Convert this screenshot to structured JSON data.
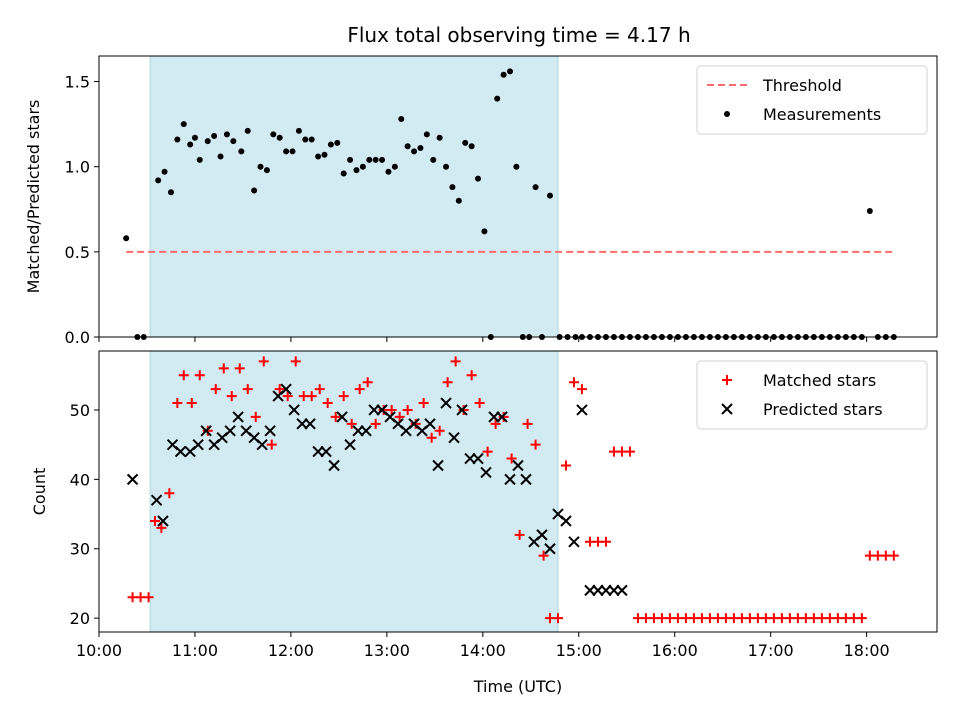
{
  "title": "Flux total observing time = 4.17 h",
  "colors": {
    "band": "#add8e6",
    "threshold": "#ff6b6b",
    "measurement": "#000000",
    "matched": "#ff0000",
    "predicted": "#000000"
  },
  "chart_data": [
    {
      "type": "scatter",
      "ylabel": "Matched/Predicted stars",
      "xlim": [
        "10:00",
        "18:44"
      ],
      "ylim": [
        0,
        1.65
      ],
      "yticks": [
        "0.0",
        "0.5",
        "1.0",
        "1.5"
      ],
      "highlight_span": [
        "10:32",
        "14:47"
      ],
      "legend": "top-right",
      "series": [
        {
          "name": "Threshold",
          "style": "dashed-line",
          "x": [
            "10:17",
            "18:17"
          ],
          "y": [
            0.5,
            0.5
          ]
        },
        {
          "name": "Measurements",
          "style": "dot",
          "x": [
            "10:17",
            "10:24",
            "10:28",
            "10:37",
            "10:41",
            "10:45",
            "10:49",
            "10:53",
            "10:57",
            "11:00",
            "11:03",
            "11:08",
            "11:12",
            "11:16",
            "11:20",
            "11:24",
            "11:29",
            "11:33",
            "11:37",
            "11:41",
            "11:45",
            "11:49",
            "11:53",
            "11:57",
            "12:01",
            "12:05",
            "12:09",
            "12:13",
            "12:17",
            "12:21",
            "12:25",
            "12:29",
            "12:33",
            "12:37",
            "12:41",
            "12:45",
            "12:49",
            "12:53",
            "12:57",
            "13:01",
            "13:05",
            "13:09",
            "13:13",
            "13:17",
            "13:21",
            "13:25",
            "13:29",
            "13:33",
            "13:37",
            "13:41",
            "13:45",
            "13:49",
            "13:53",
            "13:57",
            "14:01",
            "14:05",
            "14:09",
            "14:13",
            "14:17",
            "14:21",
            "14:25",
            "14:29",
            "14:33",
            "14:37",
            "14:42",
            "14:48",
            "14:53",
            "14:58",
            "15:02",
            "15:07",
            "15:12",
            "15:17",
            "15:22",
            "15:27",
            "15:32",
            "15:37",
            "15:42",
            "15:47",
            "15:52",
            "15:57",
            "16:02",
            "16:07",
            "16:12",
            "16:17",
            "16:22",
            "16:27",
            "16:32",
            "16:37",
            "16:42",
            "16:47",
            "16:52",
            "16:57",
            "17:02",
            "17:07",
            "17:12",
            "17:17",
            "17:22",
            "17:27",
            "17:32",
            "17:37",
            "17:42",
            "17:47",
            "17:52",
            "17:57",
            "18:02",
            "18:07",
            "18:12",
            "18:17"
          ],
          "y": [
            0.58,
            0.0,
            0.0,
            0.92,
            0.97,
            0.85,
            1.16,
            1.25,
            1.13,
            1.17,
            1.04,
            1.15,
            1.18,
            1.06,
            1.19,
            1.15,
            1.09,
            1.21,
            0.86,
            1.0,
            0.98,
            1.19,
            1.17,
            1.09,
            1.09,
            1.21,
            1.16,
            1.16,
            1.06,
            1.07,
            1.13,
            1.14,
            0.96,
            1.04,
            0.98,
            1.0,
            1.04,
            1.04,
            1.04,
            0.97,
            1.0,
            1.28,
            1.12,
            1.09,
            1.11,
            1.19,
            1.04,
            1.17,
            1.0,
            0.88,
            0.8,
            1.14,
            1.12,
            0.93,
            0.62,
            0.0,
            1.4,
            1.54,
            1.56,
            1.0,
            0.0,
            0.0,
            0.88,
            0.0,
            0.83,
            0.0,
            0.0,
            0.0,
            0.0,
            0.0,
            0.0,
            0.0,
            0.0,
            0.0,
            0.0,
            0.0,
            0.0,
            0.0,
            0.0,
            0.0,
            0.0,
            0.0,
            0.0,
            0.0,
            0.0,
            0.0,
            0.0,
            0.0,
            0.0,
            0.0,
            0.0,
            0.0,
            0.0,
            0.0,
            0.0,
            0.0,
            0.0,
            0.0,
            0.0,
            0.0,
            0.0,
            0.0,
            0.0,
            0.0,
            0.74,
            0.0,
            0.0,
            0.0
          ]
        }
      ]
    },
    {
      "type": "scatter",
      "xlabel": "Time (UTC)",
      "ylabel": "Count",
      "xlim": [
        "10:00",
        "18:44"
      ],
      "ylim": [
        18,
        58.5
      ],
      "yticks": [
        "20",
        "30",
        "40",
        "50"
      ],
      "xticks": [
        "10:00",
        "11:00",
        "12:00",
        "13:00",
        "14:00",
        "15:00",
        "16:00",
        "17:00",
        "18:00"
      ],
      "highlight_span": [
        "10:32",
        "14:47"
      ],
      "legend": "top-right",
      "series": [
        {
          "name": "Matched stars",
          "style": "plus",
          "x": [
            "10:21",
            "10:26",
            "10:31",
            "10:35",
            "10:39",
            "10:44",
            "10:49",
            "10:53",
            "10:58",
            "11:03",
            "11:08",
            "11:13",
            "11:18",
            "11:23",
            "11:28",
            "11:33",
            "11:38",
            "11:43",
            "11:48",
            "11:53",
            "11:58",
            "12:03",
            "12:08",
            "12:13",
            "12:18",
            "12:23",
            "12:28",
            "12:33",
            "12:38",
            "12:43",
            "12:48",
            "12:53",
            "12:58",
            "13:03",
            "13:08",
            "13:13",
            "13:18",
            "13:23",
            "13:28",
            "13:33",
            "13:38",
            "13:43",
            "13:48",
            "13:53",
            "13:58",
            "14:03",
            "14:08",
            "14:13",
            "14:18",
            "14:23",
            "14:28",
            "14:33",
            "14:38",
            "14:42",
            "14:47",
            "14:52",
            "14:57",
            "15:02",
            "15:07",
            "15:12",
            "15:17",
            "15:22",
            "15:27",
            "15:32",
            "15:37",
            "15:42",
            "15:47",
            "15:52",
            "15:57",
            "16:02",
            "16:07",
            "16:12",
            "16:17",
            "16:22",
            "16:27",
            "16:32",
            "16:37",
            "16:42",
            "16:47",
            "16:52",
            "16:57",
            "17:02",
            "17:07",
            "17:12",
            "17:17",
            "17:22",
            "17:27",
            "17:32",
            "17:37",
            "17:42",
            "17:47",
            "17:52",
            "17:57",
            "18:02",
            "18:07",
            "18:12",
            "18:17"
          ],
          "y": [
            23,
            23,
            23,
            34,
            33,
            38,
            51,
            55,
            51,
            55,
            47,
            53,
            56,
            52,
            56,
            53,
            49,
            57,
            45,
            53,
            52,
            57,
            52,
            52,
            53,
            51,
            49,
            52,
            48,
            53,
            54,
            48,
            50,
            50,
            49,
            50,
            48,
            51,
            46,
            47,
            54,
            57,
            50,
            55,
            51,
            44,
            48,
            49,
            43,
            32,
            48,
            45,
            29,
            20,
            20,
            42,
            54,
            53,
            31,
            31,
            31,
            44,
            44,
            44,
            20,
            20,
            20,
            20,
            20,
            20,
            20,
            20,
            20,
            20,
            20,
            20,
            20,
            20,
            20,
            20,
            20,
            20,
            20,
            20,
            20,
            20,
            20,
            20,
            20,
            20,
            20,
            20,
            20,
            29,
            29,
            29,
            29
          ]
        },
        {
          "name": "Predicted stars",
          "style": "cross",
          "x": [
            "10:21",
            "10:36",
            "10:40",
            "10:46",
            "10:51",
            "10:57",
            "11:02",
            "11:07",
            "11:12",
            "11:17",
            "11:22",
            "11:27",
            "11:32",
            "11:37",
            "11:42",
            "11:47",
            "11:52",
            "11:57",
            "12:02",
            "12:07",
            "12:12",
            "12:17",
            "12:22",
            "12:27",
            "12:32",
            "12:37",
            "12:42",
            "12:47",
            "12:52",
            "12:57",
            "13:02",
            "13:07",
            "13:12",
            "13:17",
            "13:22",
            "13:27",
            "13:32",
            "13:37",
            "13:42",
            "13:47",
            "13:52",
            "13:57",
            "14:02",
            "14:07",
            "14:12",
            "14:17",
            "14:22",
            "14:27",
            "14:32",
            "14:37",
            "14:42",
            "14:47",
            "14:52",
            "14:57",
            "15:02",
            "15:07",
            "15:12",
            "15:17",
            "15:22",
            "15:27"
          ],
          "y": [
            40,
            37,
            34,
            45,
            44,
            44,
            45,
            47,
            45,
            46,
            47,
            49,
            47,
            46,
            45,
            47,
            52,
            53,
            50,
            48,
            48,
            44,
            44,
            42,
            49,
            45,
            47,
            47,
            50,
            50,
            49,
            48,
            47,
            48,
            47,
            48,
            42,
            51,
            46,
            50,
            43,
            43,
            41,
            49,
            49,
            40,
            42,
            40,
            31,
            32,
            30,
            35,
            34,
            31,
            50,
            24,
            24,
            24,
            24,
            24
          ]
        }
      ]
    }
  ]
}
